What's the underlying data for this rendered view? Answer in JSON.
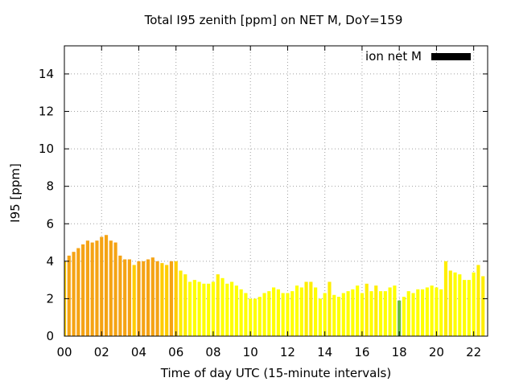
{
  "chart_data": {
    "type": "bar",
    "title": "Total I95 zenith [ppm] on NET M, DoY=159",
    "xlabel": "Time of day UTC (15-minute intervals)",
    "ylabel": "I95 [ppm]",
    "xlim": [
      0,
      22.75
    ],
    "ylim": [
      0,
      15.5
    ],
    "xticks": [
      "00",
      "02",
      "04",
      "06",
      "08",
      "10",
      "12",
      "14",
      "16",
      "18",
      "20",
      "22"
    ],
    "yticks": [
      "0",
      "2",
      "4",
      "6",
      "8",
      "10",
      "12",
      "14"
    ],
    "grid": true,
    "legend": {
      "position": "top-right",
      "entries": [
        {
          "label": "ion net M",
          "color": "#000000"
        }
      ]
    },
    "bar_width_hours": 0.18,
    "x": [
      0.0,
      0.25,
      0.5,
      0.75,
      1.0,
      1.25,
      1.5,
      1.75,
      2.0,
      2.25,
      2.5,
      2.75,
      3.0,
      3.25,
      3.5,
      3.75,
      4.0,
      4.25,
      4.5,
      4.75,
      5.0,
      5.25,
      5.5,
      5.75,
      6.0,
      6.25,
      6.5,
      6.75,
      7.0,
      7.25,
      7.5,
      7.75,
      8.0,
      8.25,
      8.5,
      8.75,
      9.0,
      9.25,
      9.5,
      9.75,
      10.0,
      10.25,
      10.5,
      10.75,
      11.0,
      11.25,
      11.5,
      11.75,
      12.0,
      12.25,
      12.5,
      12.75,
      13.0,
      13.25,
      13.5,
      13.75,
      14.0,
      14.25,
      14.5,
      14.75,
      15.0,
      15.25,
      15.5,
      15.75,
      16.0,
      16.25,
      16.5,
      16.75,
      17.0,
      17.25,
      17.5,
      17.75,
      18.0,
      18.25,
      18.5,
      18.75,
      19.0,
      19.25,
      19.5,
      19.75,
      20.0,
      20.25,
      20.5,
      20.75,
      21.0,
      21.25,
      21.5,
      21.75,
      22.0,
      22.25,
      22.5
    ],
    "values": [
      4.0,
      4.3,
      4.5,
      4.7,
      4.9,
      5.1,
      5.0,
      5.1,
      5.3,
      5.4,
      5.1,
      5.0,
      4.3,
      4.1,
      4.1,
      3.8,
      4.0,
      4.0,
      4.1,
      4.2,
      4.0,
      3.9,
      3.8,
      4.0,
      4.0,
      3.5,
      3.3,
      2.9,
      3.0,
      2.9,
      2.8,
      2.8,
      2.9,
      3.3,
      3.1,
      2.8,
      2.9,
      2.7,
      2.5,
      2.3,
      2.0,
      2.0,
      2.1,
      2.3,
      2.4,
      2.6,
      2.5,
      2.3,
      2.3,
      2.4,
      2.7,
      2.6,
      2.9,
      2.9,
      2.6,
      2.0,
      2.3,
      2.9,
      2.2,
      2.1,
      2.3,
      2.4,
      2.5,
      2.7,
      2.3,
      2.8,
      2.4,
      2.7,
      2.4,
      2.4,
      2.6,
      2.7,
      1.9,
      2.1,
      2.4,
      2.3,
      2.5,
      2.5,
      2.6,
      2.7,
      2.6,
      2.5,
      4.0,
      3.5,
      3.4,
      3.3,
      3.0,
      3.0,
      3.4,
      3.8,
      3.2
    ],
    "colors": [
      "#ffcc00",
      "#f5a314",
      "#f5a314",
      "#f5a314",
      "#f5a314",
      "#f5a314",
      "#f5a314",
      "#f5a314",
      "#f5a314",
      "#f5a314",
      "#f5a314",
      "#f5a314",
      "#f5a314",
      "#f5a314",
      "#f5a314",
      "#ffcc00",
      "#f5a314",
      "#f5a314",
      "#f5a314",
      "#f5a314",
      "#f5a314",
      "#ffcc00",
      "#ffcc00",
      "#f5a314",
      "#ffcc00",
      "#ffee00",
      "#ffee00",
      "#ffff00",
      "#ffff00",
      "#ffff00",
      "#ffff00",
      "#ffff00",
      "#ffff00",
      "#ffee00",
      "#ffff00",
      "#ffff00",
      "#ffff00",
      "#ffff00",
      "#ffff00",
      "#ffff00",
      "#ffff00",
      "#ffff00",
      "#ffff00",
      "#ffff00",
      "#ffff00",
      "#ffff00",
      "#ffff00",
      "#ffff00",
      "#ffff00",
      "#ffff00",
      "#ffff00",
      "#ffff00",
      "#ffee00",
      "#ffee00",
      "#ffff00",
      "#ffff00",
      "#ffff00",
      "#ffee00",
      "#ffff00",
      "#ffff00",
      "#ffff00",
      "#ffff00",
      "#ffff00",
      "#ffff00",
      "#ffff00",
      "#ffee00",
      "#ffff00",
      "#ffee00",
      "#ffff00",
      "#ffff00",
      "#ffff00",
      "#ffff00",
      "#66bb44",
      "#ffff00",
      "#ffff00",
      "#ffff00",
      "#ffff00",
      "#ffff00",
      "#ffff00",
      "#ffff00",
      "#ffff00",
      "#ffff00",
      "#ffee00",
      "#ffee00",
      "#ffff00",
      "#ffff00",
      "#ffff00",
      "#ffff00",
      "#ffff00",
      "#ffee00",
      "#ffee00"
    ]
  }
}
